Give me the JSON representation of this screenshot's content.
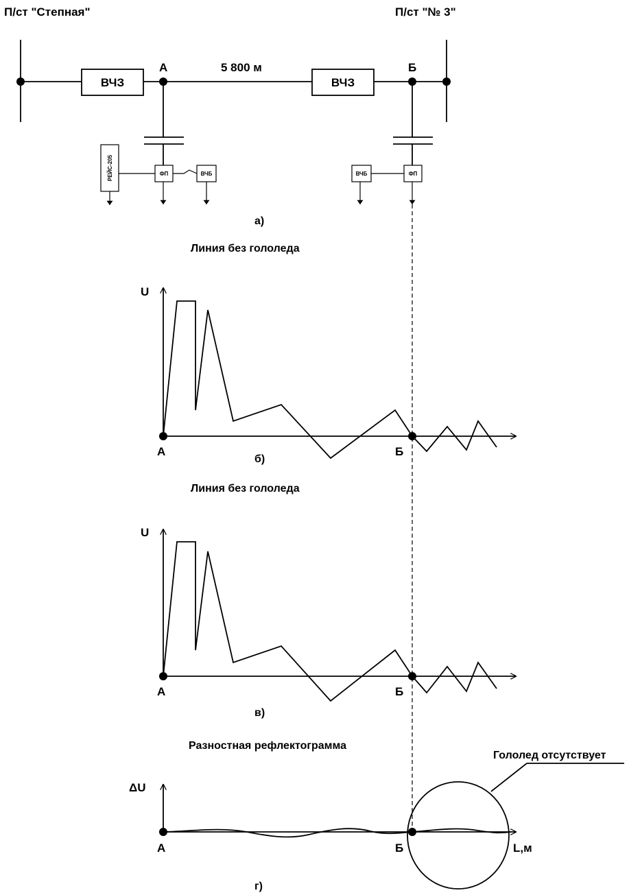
{
  "schematic": {
    "substation_left": "П/ст \"Степная\"",
    "substation_right": "П/ст \"№ 3\"",
    "node_a": "А",
    "node_b": "Б",
    "distance": "5 800 м",
    "trap_left": "ВЧЗ",
    "trap_right": "ВЧЗ",
    "filter_left": "ФП",
    "filter_right": "ФП",
    "hf_left": "ВЧБ",
    "hf_right": "ВЧБ",
    "reflectometer": "РЕЙС-205",
    "caption": "а)"
  },
  "panel_b": {
    "title": "Линия без гололеда",
    "y_axis": "U",
    "start_label": "А",
    "end_label": "Б",
    "caption": "б)"
  },
  "panel_v": {
    "title": "Линия без гололеда",
    "y_axis": "U",
    "start_label": "А",
    "end_label": "Б",
    "caption": "в)"
  },
  "panel_g": {
    "title": "Разностная рефлектограмма",
    "y_axis": "ΔU",
    "x_axis": "L,м",
    "start_label": "А",
    "end_label": "Б",
    "annotation": "Гололед отсутствует",
    "caption": "г)"
  }
}
